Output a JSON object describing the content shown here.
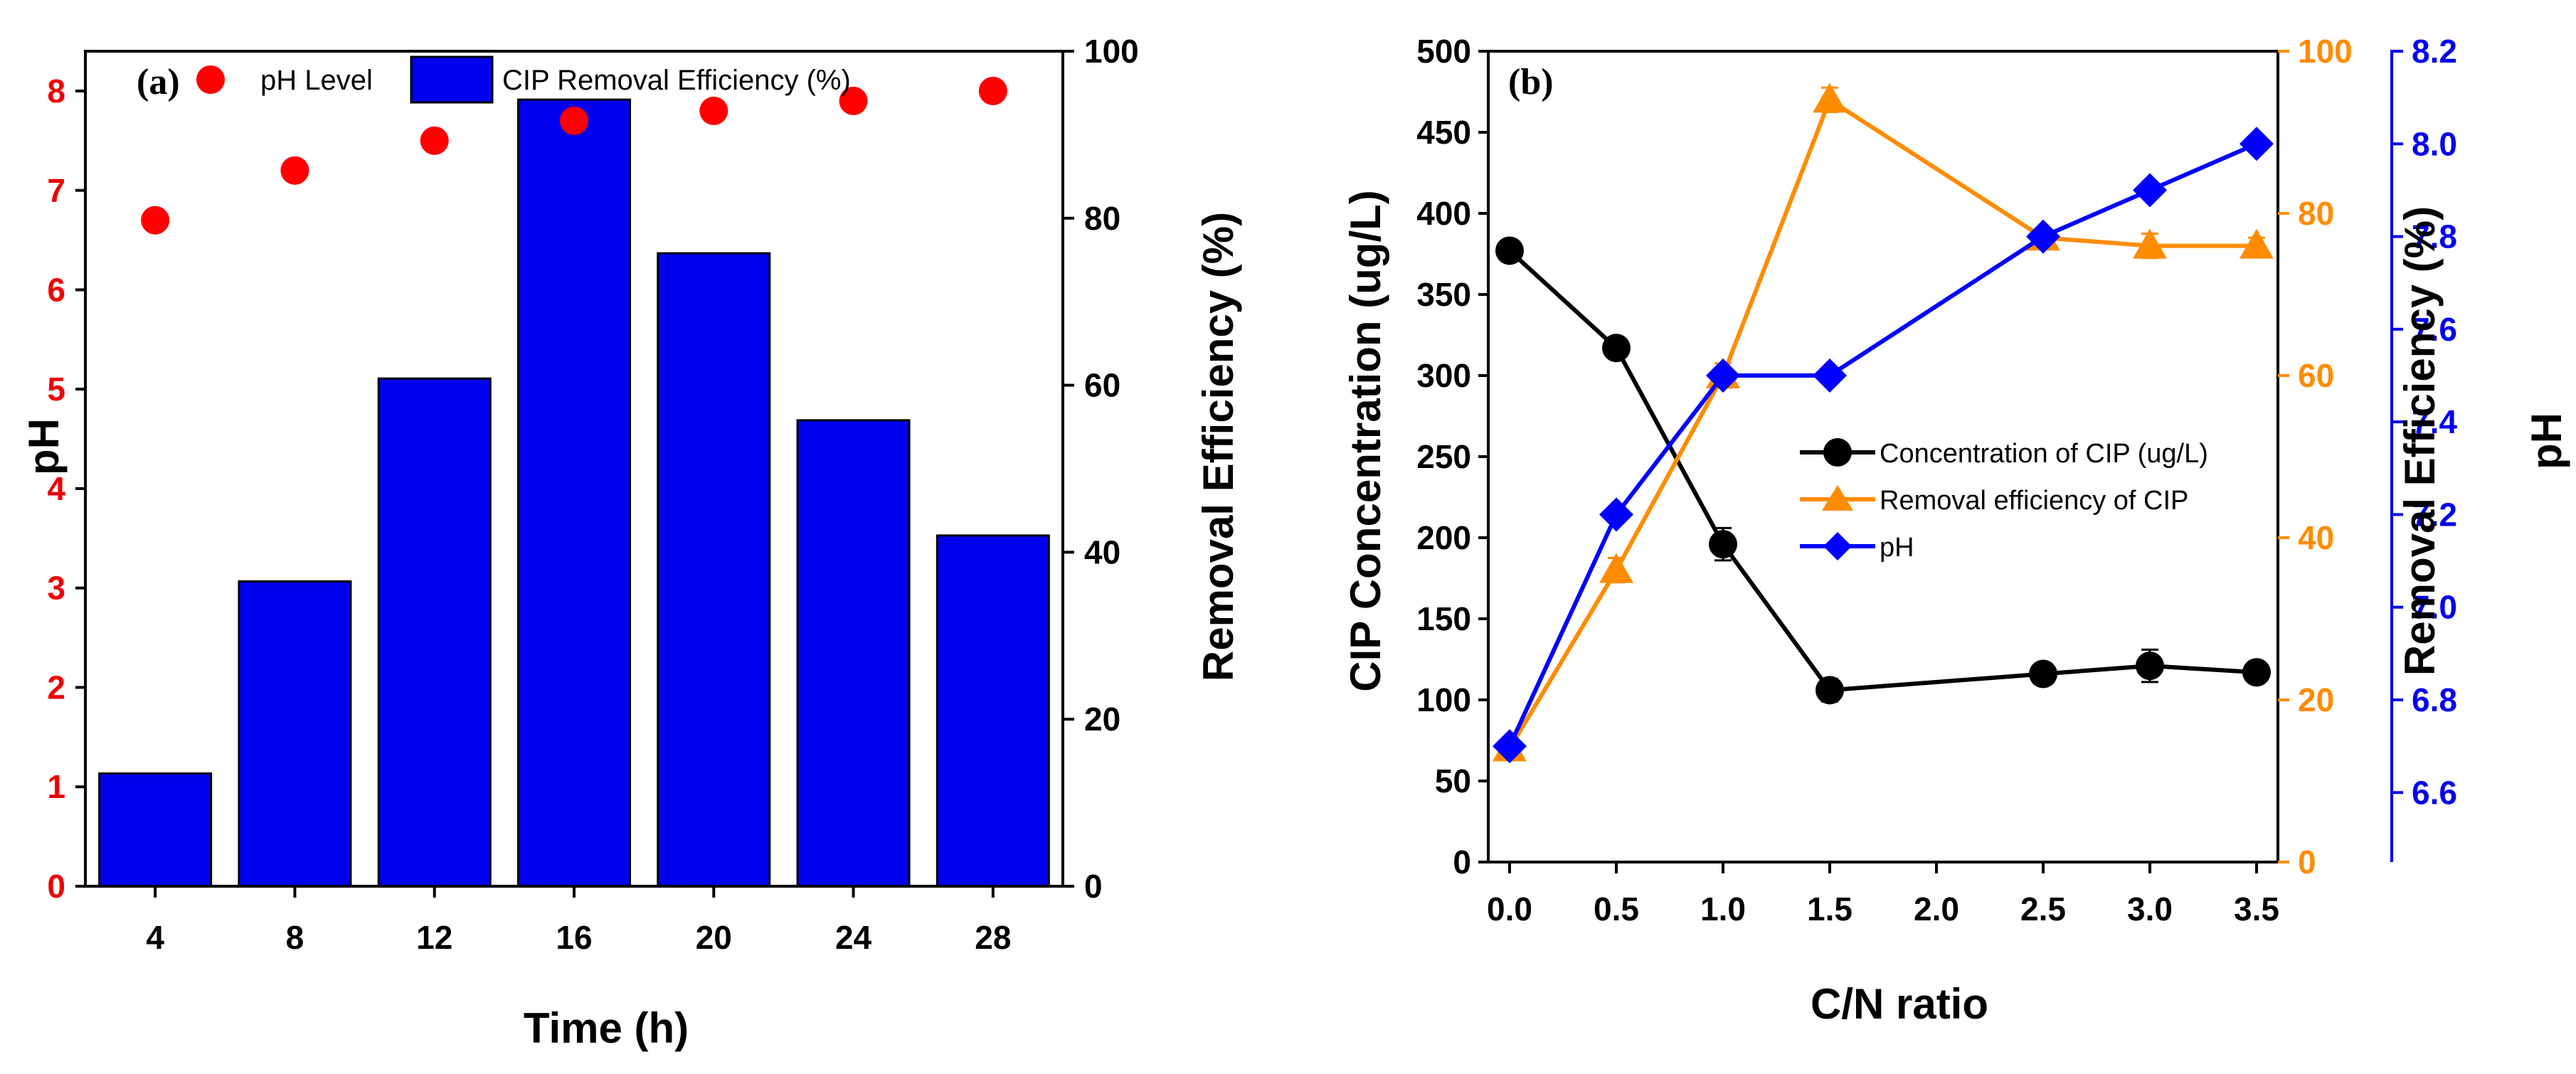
{
  "chart_data": [
    {
      "panel": "(a)",
      "type": "bar",
      "xlabel": "Time (h)",
      "ylabel_left": "pH",
      "ylabel_right": "Removal Efficiency (%)",
      "categories": [
        "4",
        "8",
        "12",
        "16",
        "20",
        "24",
        "28"
      ],
      "yticks_left": [
        "0",
        "1",
        "2",
        "3",
        "4",
        "5",
        "6",
        "7",
        "8"
      ],
      "yticks_right": [
        "0",
        "20",
        "40",
        "60",
        "80",
        "100"
      ],
      "ylim_left": [
        0,
        8.4
      ],
      "ylim_right": [
        0,
        100
      ],
      "series": [
        {
          "name": "CIP Removal Efficiency (%)",
          "kind": "bar",
          "axis": "right",
          "values": [
            13.5,
            36.5,
            60.8,
            94.2,
            75.8,
            55.8,
            42.0
          ]
        },
        {
          "name": "pH Level",
          "kind": "scatter",
          "axis": "left",
          "values": [
            6.7,
            7.2,
            7.5,
            7.7,
            7.8,
            7.9,
            8.0
          ]
        }
      ],
      "legend": [
        "pH Level",
        "CIP Removal Efficiency (%)"
      ],
      "colors": {
        "bar": "#0000ee",
        "points": "#ff0000",
        "left_axis": "#ee0000",
        "frame": "#000000"
      }
    },
    {
      "panel": "(b)",
      "type": "line",
      "xlabel": "C/N ratio",
      "ylabel_left": "CIP Concentration (ug/L)",
      "ylabel_right": "Removal Efficiency (%)",
      "ylabel_right2": "pH",
      "xticks": [
        "0.0",
        "0.5",
        "1.0",
        "1.5",
        "2.0",
        "2.5",
        "3.0",
        "3.5"
      ],
      "yticks_left": [
        "0",
        "50",
        "100",
        "150",
        "200",
        "250",
        "300",
        "350",
        "400",
        "450",
        "500"
      ],
      "yticks_right": [
        "0",
        "20",
        "40",
        "60",
        "80",
        "100"
      ],
      "yticks_right2": [
        "6.6",
        "6.8",
        "7.0",
        "7.2",
        "7.4",
        "7.6",
        "7.8",
        "8.0",
        "8.2"
      ],
      "xlim": [
        -0.1,
        3.6
      ],
      "ylim_left": [
        0,
        500
      ],
      "ylim_right": [
        0,
        100
      ],
      "ylim_right2": [
        6.45,
        8.2
      ],
      "x": [
        0.0,
        0.5,
        1.0,
        1.5,
        2.5,
        3.0,
        3.5
      ],
      "series": [
        {
          "name": "Concentration of CIP (ug/L)",
          "axis": "left",
          "marker": "circle",
          "color": "#000000",
          "values": [
            377,
            317,
            196,
            106,
            116,
            121,
            117
          ],
          "errors": [
            6,
            5,
            10,
            7,
            5,
            10,
            5
          ]
        },
        {
          "name": "Removal efficiency of CIP",
          "axis": "right",
          "marker": "triangle",
          "color": "#ff8c00",
          "values": [
            14,
            36,
            60,
            94,
            77,
            76,
            76
          ],
          "errors": [
            1,
            1.5,
            1.5,
            1.5,
            1,
            1.5,
            1
          ]
        },
        {
          "name": "pH",
          "axis": "right2",
          "marker": "diamond",
          "color": "#0000ff",
          "values": [
            6.7,
            7.2,
            7.5,
            7.5,
            7.8,
            7.9,
            8.0
          ],
          "errors": [
            0,
            0,
            0,
            0,
            0,
            0,
            0
          ]
        }
      ],
      "legend_position": "center-right",
      "colors": {
        "right_axis": "#ff8c00",
        "right2_axis": "#0000ee",
        "frame": "#000000"
      }
    }
  ]
}
